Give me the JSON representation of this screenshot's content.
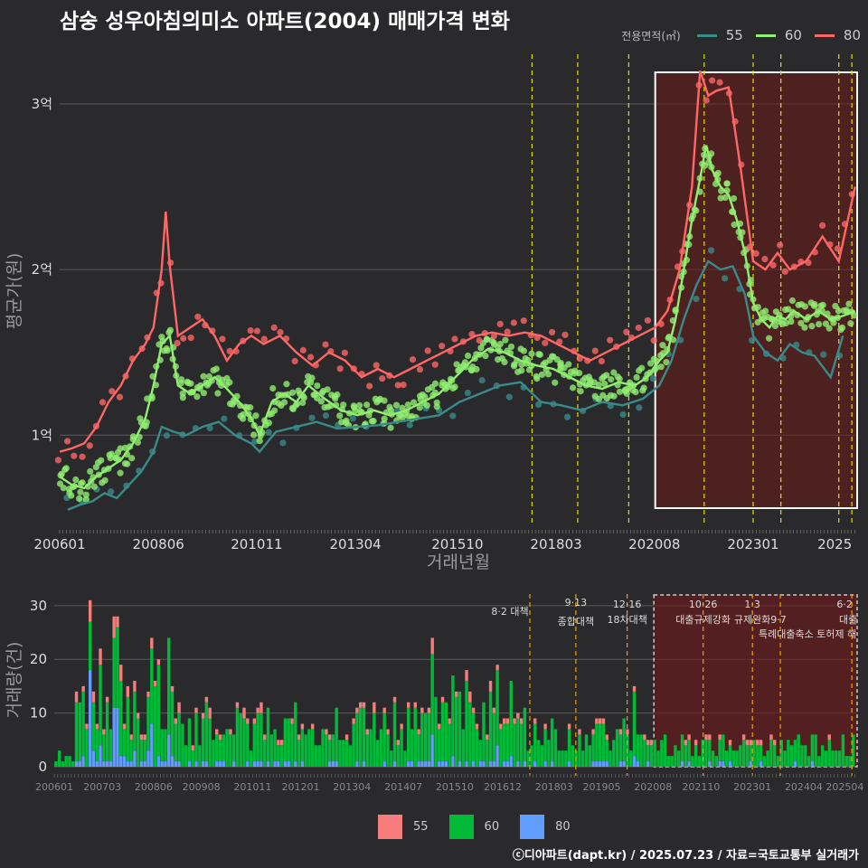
{
  "chart_data": [
    {
      "type": "line",
      "title": "삼숭 성우아침의미소 아파트(2004) 매매가격 변화",
      "xlabel": "거래년월",
      "ylabel": "평균가(원)",
      "legend_title": "전용면적(㎡)",
      "x_ticks": [
        "200601",
        "200806",
        "201011",
        "201304",
        "201510",
        "201803",
        "202008",
        "202301",
        "2025"
      ],
      "y_ticks": [
        {
          "label": "1억",
          "value": 1.0
        },
        {
          "label": "2억",
          "value": 2.0
        },
        {
          "label": "3억",
          "value": 3.0
        }
      ],
      "ylim": [
        0.45,
        3.3
      ],
      "x_range": [
        2006.0,
        2025.55
      ],
      "vlines": [
        2017.58,
        2018.7,
        2019.95,
        2021.8,
        2023.0,
        2023.68,
        2025.1,
        2025.42
      ],
      "highlight_range": [
        2020.6,
        2025.55
      ],
      "series": [
        {
          "name": "55",
          "color": "#3a8a8a",
          "points": [
            [
              2006.2,
              0.55
            ],
            [
              2006.5,
              0.58
            ],
            [
              2006.8,
              0.6
            ],
            [
              2007.1,
              0.65
            ],
            [
              2007.4,
              0.62
            ],
            [
              2007.7,
              0.7
            ],
            [
              2008.0,
              0.78
            ],
            [
              2008.3,
              0.9
            ],
            [
              2008.5,
              1.05
            ],
            [
              2008.8,
              1.02
            ],
            [
              2009.1,
              1.0
            ],
            [
              2009.5,
              1.05
            ],
            [
              2009.9,
              1.08
            ],
            [
              2010.3,
              1.0
            ],
            [
              2010.7,
              0.95
            ],
            [
              2010.9,
              0.9
            ],
            [
              2011.3,
              1.02
            ],
            [
              2011.8,
              1.05
            ],
            [
              2012.3,
              1.08
            ],
            [
              2012.8,
              1.04
            ],
            [
              2013.3,
              1.05
            ],
            [
              2013.8,
              1.06
            ],
            [
              2014.3,
              1.08
            ],
            [
              2014.8,
              1.1
            ],
            [
              2015.3,
              1.12
            ],
            [
              2015.8,
              1.2
            ],
            [
              2016.3,
              1.25
            ],
            [
              2016.8,
              1.3
            ],
            [
              2017.3,
              1.32
            ],
            [
              2017.8,
              1.2
            ],
            [
              2018.3,
              1.18
            ],
            [
              2018.8,
              1.15
            ],
            [
              2019.3,
              1.2
            ],
            [
              2019.8,
              1.18
            ],
            [
              2020.3,
              1.22
            ],
            [
              2020.7,
              1.3
            ],
            [
              2021.0,
              1.45
            ],
            [
              2021.3,
              1.7
            ],
            [
              2021.6,
              1.9
            ],
            [
              2021.9,
              2.05
            ],
            [
              2022.2,
              2.0
            ],
            [
              2022.5,
              2.02
            ],
            [
              2022.8,
              1.85
            ],
            [
              2023.0,
              1.6
            ],
            [
              2023.3,
              1.5
            ],
            [
              2023.6,
              1.45
            ],
            [
              2023.9,
              1.55
            ],
            [
              2024.2,
              1.5
            ],
            [
              2024.5,
              1.48
            ],
            [
              2024.9,
              1.35
            ],
            [
              2025.2,
              1.6
            ]
          ]
        },
        {
          "name": "60",
          "color": "#90ee70",
          "points": [
            [
              2006.0,
              0.75
            ],
            [
              2006.3,
              0.7
            ],
            [
              2006.6,
              0.68
            ],
            [
              2006.9,
              0.75
            ],
            [
              2007.2,
              0.8
            ],
            [
              2007.5,
              0.85
            ],
            [
              2007.8,
              0.95
            ],
            [
              2008.1,
              1.1
            ],
            [
              2008.3,
              1.3
            ],
            [
              2008.5,
              1.55
            ],
            [
              2008.7,
              1.6
            ],
            [
              2008.9,
              1.3
            ],
            [
              2009.2,
              1.25
            ],
            [
              2009.5,
              1.3
            ],
            [
              2009.8,
              1.35
            ],
            [
              2010.1,
              1.28
            ],
            [
              2010.4,
              1.2
            ],
            [
              2010.7,
              1.1
            ],
            [
              2010.9,
              1.0
            ],
            [
              2011.2,
              1.2
            ],
            [
              2011.5,
              1.25
            ],
            [
              2011.8,
              1.2
            ],
            [
              2012.1,
              1.3
            ],
            [
              2012.5,
              1.22
            ],
            [
              2012.9,
              1.15
            ],
            [
              2013.3,
              1.12
            ],
            [
              2013.7,
              1.15
            ],
            [
              2014.1,
              1.12
            ],
            [
              2014.5,
              1.15
            ],
            [
              2014.9,
              1.2
            ],
            [
              2015.3,
              1.25
            ],
            [
              2015.7,
              1.35
            ],
            [
              2016.1,
              1.45
            ],
            [
              2016.5,
              1.52
            ],
            [
              2016.9,
              1.5
            ],
            [
              2017.3,
              1.45
            ],
            [
              2017.7,
              1.42
            ],
            [
              2018.1,
              1.4
            ],
            [
              2018.5,
              1.35
            ],
            [
              2018.9,
              1.3
            ],
            [
              2019.3,
              1.28
            ],
            [
              2019.7,
              1.32
            ],
            [
              2020.1,
              1.3
            ],
            [
              2020.4,
              1.35
            ],
            [
              2020.7,
              1.45
            ],
            [
              2020.9,
              1.5
            ],
            [
              2021.1,
              1.7
            ],
            [
              2021.3,
              2.0
            ],
            [
              2021.5,
              2.3
            ],
            [
              2021.7,
              2.55
            ],
            [
              2021.85,
              2.75
            ],
            [
              2022.0,
              2.6
            ],
            [
              2022.2,
              2.5
            ],
            [
              2022.4,
              2.45
            ],
            [
              2022.6,
              2.3
            ],
            [
              2022.8,
              2.1
            ],
            [
              2023.0,
              1.8
            ],
            [
              2023.2,
              1.7
            ],
            [
              2023.4,
              1.65
            ],
            [
              2023.6,
              1.72
            ],
            [
              2023.8,
              1.7
            ],
            [
              2024.0,
              1.75
            ],
            [
              2024.3,
              1.7
            ],
            [
              2024.6,
              1.75
            ],
            [
              2024.9,
              1.7
            ],
            [
              2025.2,
              1.72
            ],
            [
              2025.5,
              1.75
            ]
          ]
        },
        {
          "name": "80",
          "color": "#ff6666",
          "points": [
            [
              2006.0,
              0.9
            ],
            [
              2006.3,
              0.92
            ],
            [
              2006.6,
              0.95
            ],
            [
              2006.9,
              1.05
            ],
            [
              2007.2,
              1.2
            ],
            [
              2007.5,
              1.3
            ],
            [
              2007.8,
              1.45
            ],
            [
              2008.1,
              1.55
            ],
            [
              2008.3,
              1.65
            ],
            [
              2008.5,
              2.0
            ],
            [
              2008.6,
              2.35
            ],
            [
              2008.7,
              2.02
            ],
            [
              2008.9,
              1.6
            ],
            [
              2009.2,
              1.65
            ],
            [
              2009.5,
              1.7
            ],
            [
              2009.8,
              1.6
            ],
            [
              2010.1,
              1.45
            ],
            [
              2010.4,
              1.55
            ],
            [
              2010.7,
              1.6
            ],
            [
              2011.0,
              1.55
            ],
            [
              2011.4,
              1.6
            ],
            [
              2011.8,
              1.5
            ],
            [
              2012.2,
              1.42
            ],
            [
              2012.6,
              1.5
            ],
            [
              2013.0,
              1.45
            ],
            [
              2013.4,
              1.35
            ],
            [
              2013.8,
              1.4
            ],
            [
              2014.2,
              1.35
            ],
            [
              2014.6,
              1.4
            ],
            [
              2015.0,
              1.45
            ],
            [
              2015.4,
              1.5
            ],
            [
              2015.8,
              1.55
            ],
            [
              2016.2,
              1.6
            ],
            [
              2016.6,
              1.62
            ],
            [
              2017.0,
              1.6
            ],
            [
              2017.4,
              1.62
            ],
            [
              2017.8,
              1.6
            ],
            [
              2018.2,
              1.55
            ],
            [
              2018.6,
              1.5
            ],
            [
              2019.0,
              1.45
            ],
            [
              2019.4,
              1.5
            ],
            [
              2019.8,
              1.55
            ],
            [
              2020.2,
              1.6
            ],
            [
              2020.6,
              1.65
            ],
            [
              2020.9,
              1.75
            ],
            [
              2021.2,
              2.0
            ],
            [
              2021.5,
              2.5
            ],
            [
              2021.7,
              3.2
            ],
            [
              2021.9,
              3.05
            ],
            [
              2022.1,
              3.08
            ],
            [
              2022.4,
              3.1
            ],
            [
              2022.7,
              2.6
            ],
            [
              2023.0,
              2.05
            ],
            [
              2023.3,
              2.0
            ],
            [
              2023.6,
              2.1
            ],
            [
              2023.9,
              2.0
            ],
            [
              2024.3,
              2.05
            ],
            [
              2024.7,
              2.2
            ],
            [
              2025.1,
              2.05
            ],
            [
              2025.5,
              2.5
            ]
          ]
        }
      ]
    },
    {
      "type": "bar",
      "xlabel": "",
      "ylabel": "거래량(건)",
      "ylim": [
        0,
        33
      ],
      "y_ticks": [
        0,
        10,
        20,
        30
      ],
      "x_ticks": [
        "200601",
        "200703",
        "200806",
        "200908",
        "201011",
        "201201",
        "201304",
        "201407",
        "201510",
        "201612",
        "201803",
        "201905",
        "202008",
        "202110",
        "202301",
        "202404",
        "202504"
      ],
      "stacked": true,
      "series_names": [
        "55",
        "60",
        "80"
      ],
      "series_colors": [
        "#f77c7c",
        "#00ba38",
        "#619cff"
      ],
      "peaks": [
        {
          "x": 2006.9,
          "total": 31,
          "s80": 18
        },
        {
          "x": 2007.5,
          "total": 28,
          "s80": 11
        },
        {
          "x": 2008.4,
          "total": 24,
          "s80": 8
        },
        {
          "x": 2008.8,
          "total": 24,
          "s80": 6
        },
        {
          "x": 2015.2,
          "total": 24,
          "s80": 6
        },
        {
          "x": 2016.8,
          "total": 19,
          "s80": 4
        },
        {
          "x": 2020.1,
          "total": 15,
          "s80": 2
        }
      ],
      "events": [
        {
          "x": 2017.58,
          "date": "8·2",
          "label": "대책"
        },
        {
          "x": 2018.7,
          "date": "9·13",
          "label": "종합대책"
        },
        {
          "x": 2019.95,
          "date": "12·16",
          "label": "18차대책"
        },
        {
          "x": 2021.8,
          "date": "10·26",
          "label": "대출규제강화"
        },
        {
          "x": 2023.0,
          "date": "1·3",
          "label": "규제완화"
        },
        {
          "x": 2023.68,
          "date": "9·7",
          "label": "특례대출축소 토허제 해"
        },
        {
          "x": 2025.42,
          "date": "6·2",
          "label": "대출"
        }
      ]
    }
  ],
  "credit": "ⓒ디아파트(dapt.kr) / 2025.07.23 / 자료=국토교통부 실거래가"
}
